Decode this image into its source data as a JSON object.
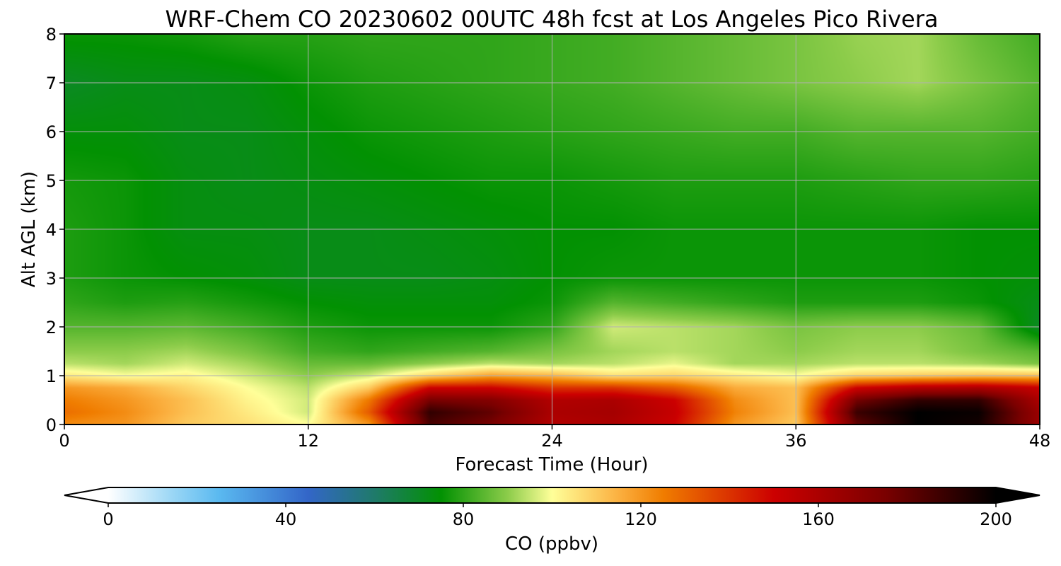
{
  "chart_data": {
    "type": "heatmap",
    "title": "WRF-Chem CO  20230602 00UTC 48h fcst at Los Angeles Pico Rivera",
    "xlabel": "Forecast Time (Hour)",
    "ylabel": "Alt AGL (km)",
    "xlim": [
      0,
      48
    ],
    "ylim": [
      0,
      8
    ],
    "x_ticks": [
      "0",
      "12",
      "24",
      "36",
      "48"
    ],
    "y_ticks": [
      "0",
      "1",
      "2",
      "3",
      "4",
      "5",
      "6",
      "7",
      "8"
    ],
    "grid": true,
    "x": [
      0,
      3,
      6,
      9,
      12,
      15,
      18,
      21,
      24,
      27,
      30,
      33,
      36,
      39,
      42,
      45,
      48
    ],
    "y": [
      0,
      0.25,
      0.5,
      0.75,
      1,
      1.25,
      1.5,
      2,
      2.5,
      3,
      4,
      5,
      6,
      7,
      8
    ],
    "z": [
      [
        122,
        120,
        110,
        106,
        100,
        120,
        185,
        175,
        158,
        160,
        150,
        120,
        110,
        180,
        200,
        196,
        165
      ],
      [
        128,
        122,
        112,
        104,
        96,
        132,
        190,
        180,
        160,
        162,
        152,
        124,
        112,
        188,
        200,
        198,
        165
      ],
      [
        125,
        120,
        112,
        102,
        96,
        126,
        175,
        172,
        158,
        160,
        150,
        122,
        112,
        176,
        190,
        190,
        160
      ],
      [
        120,
        116,
        108,
        100,
        94,
        110,
        150,
        150,
        140,
        140,
        132,
        116,
        112,
        150,
        158,
        160,
        152
      ],
      [
        104,
        100,
        102,
        96,
        90,
        96,
        108,
        118,
        114,
        106,
        108,
        104,
        100,
        108,
        110,
        112,
        112
      ],
      [
        94,
        92,
        96,
        92,
        86,
        86,
        90,
        94,
        92,
        94,
        98,
        92,
        92,
        94,
        94,
        92,
        88
      ],
      [
        90,
        90,
        92,
        88,
        82,
        80,
        82,
        84,
        88,
        92,
        94,
        92,
        90,
        92,
        92,
        88,
        84
      ],
      [
        84,
        84,
        85,
        82,
        78,
        76,
        76,
        76,
        80,
        96,
        94,
        92,
        88,
        90,
        90,
        86,
        70
      ],
      [
        80,
        78,
        79,
        77,
        75,
        74,
        74,
        74,
        76,
        84,
        82,
        80,
        78,
        78,
        78,
        76,
        72
      ],
      [
        78,
        76,
        75,
        74,
        72,
        72,
        72,
        73,
        75,
        76,
        76,
        76,
        76,
        76,
        76,
        75,
        74
      ],
      [
        78,
        76,
        73,
        73,
        72,
        72,
        73,
        74,
        75,
        75,
        76,
        76,
        76,
        76,
        76,
        75,
        75
      ],
      [
        77,
        76,
        73,
        72,
        73,
        74,
        75,
        76,
        76,
        77,
        78,
        78,
        78,
        79,
        80,
        80,
        79
      ],
      [
        74,
        74,
        72,
        72,
        74,
        76,
        77,
        78,
        79,
        80,
        81,
        82,
        82,
        84,
        84,
        84,
        82
      ],
      [
        70,
        72,
        72,
        73,
        76,
        78,
        79,
        80,
        81,
        82,
        84,
        86,
        88,
        90,
        92,
        88,
        84
      ],
      [
        76,
        76,
        77,
        79,
        79,
        80,
        80,
        80,
        81,
        82,
        84,
        86,
        88,
        91,
        92,
        86,
        82
      ]
    ],
    "colorbar": {
      "label": "CO  (ppbv)",
      "min": 0,
      "max": 200,
      "ticks": [
        "0",
        "40",
        "80",
        "120",
        "160",
        "200"
      ],
      "extend": "both",
      "stops": [
        {
          "v": 0,
          "c": "#ffffff"
        },
        {
          "v": 15,
          "c": "#97d5f5"
        },
        {
          "v": 25,
          "c": "#5ab9f0"
        },
        {
          "v": 45,
          "c": "#3366c8"
        },
        {
          "v": 60,
          "c": "#1f7a6a"
        },
        {
          "v": 75,
          "c": "#029102"
        },
        {
          "v": 90,
          "c": "#8ccc4a"
        },
        {
          "v": 100,
          "c": "#ffff99"
        },
        {
          "v": 115,
          "c": "#fbb040"
        },
        {
          "v": 125,
          "c": "#f07d00"
        },
        {
          "v": 150,
          "c": "#cc0000"
        },
        {
          "v": 175,
          "c": "#7a0000"
        },
        {
          "v": 200,
          "c": "#000000"
        }
      ]
    }
  }
}
